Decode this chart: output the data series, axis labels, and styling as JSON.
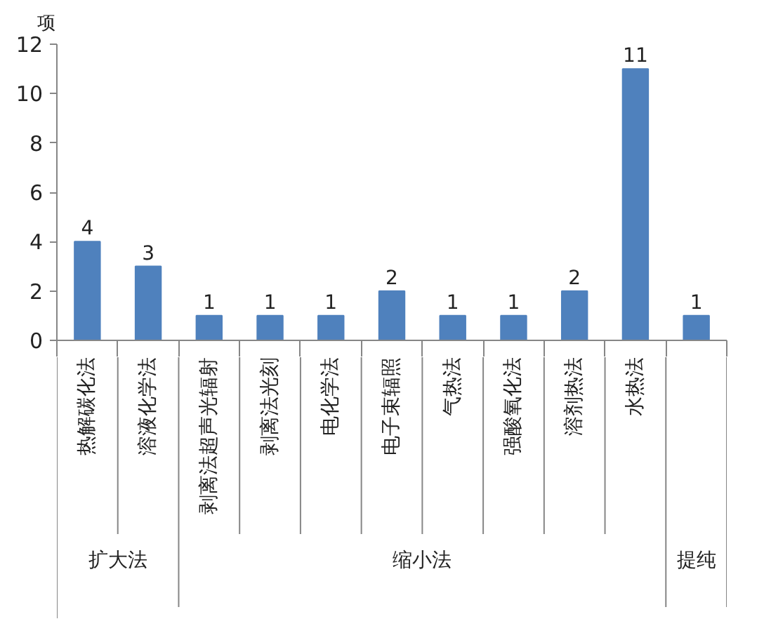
{
  "chart_data": {
    "type": "bar",
    "ylabel": "项",
    "categories": [
      "热解碳化法",
      "溶液化学法",
      "剥离法超声光辐射",
      "剥离法光刻",
      "电化学法",
      "电子束辐照",
      "气热法",
      "强酸氧化法",
      "溶剂热法",
      "水热法",
      null
    ],
    "values": [
      4,
      3,
      1,
      1,
      1,
      2,
      1,
      1,
      2,
      11,
      1
    ],
    "color": "#4f81bd",
    "ylim": [
      0,
      12
    ],
    "yticks": [
      0,
      2,
      4,
      6,
      8,
      10,
      12
    ],
    "data_labels": true,
    "annotations": [
      "扩大法",
      "缩小法",
      "提纯"
    ]
  }
}
